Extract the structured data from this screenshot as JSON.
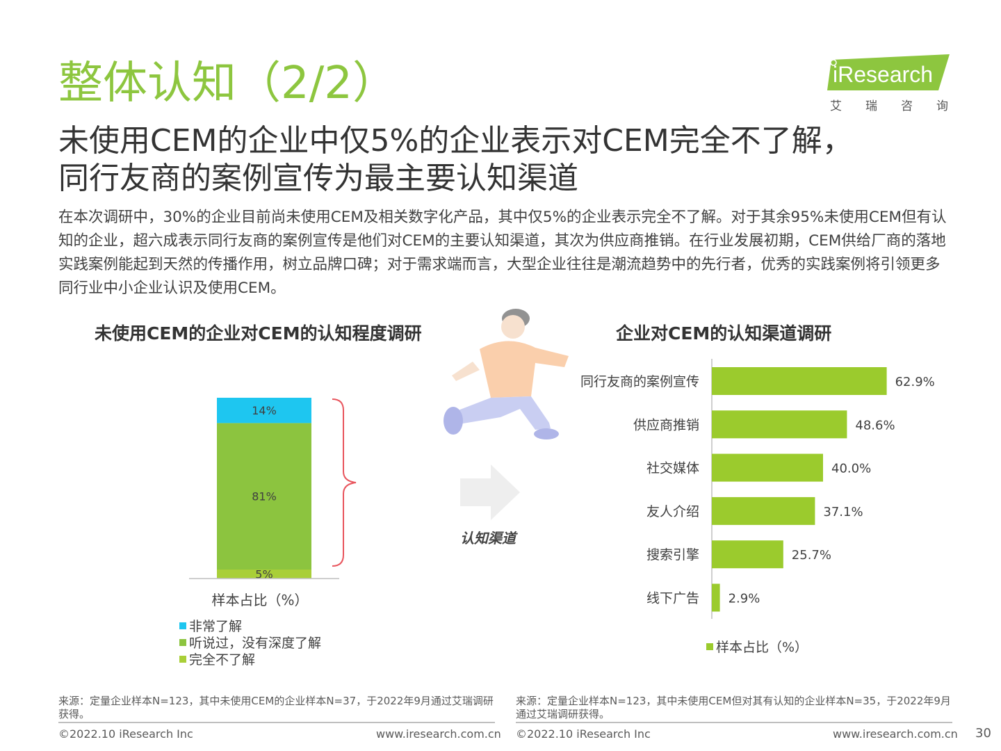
{
  "page": {
    "title": "整体认知（2/2）",
    "headline_lines": [
      "未使用CEM的企业中仅5%的企业表示对CEM完全不了解，",
      "同行友商的案例宣传为最主要认知渠道"
    ],
    "summary": "在本次调研中，30%的企业目前尚未使用CEM及相关数字化产品，其中仅5%的企业表示完全不了解。对于其余95%未使用CEM但有认知的企业，超六成表示同行友商的案例宣传是他们对CEM的主要认知渠道，其次为供应商推销。在行业发展初期，CEM供给厂商的落地实践案例能起到天然的传播作用，树立品牌口碑；对于需求端而言，大型企业往往是潮流趋势中的先行者，优秀的实践案例将引领更多同行业中小企业认识及使用CEM。",
    "page_number": "30"
  },
  "logo": {
    "word": "iResearch",
    "cn": "艾瑞咨询"
  },
  "colors": {
    "accent_green": "#8dc63f",
    "bar_green": "#9bcb2d",
    "cyan": "#1ec6f0",
    "mid_green": "#8cc43f",
    "light_green": "#a9cf38"
  },
  "middle": {
    "channel_label": "认知渠道"
  },
  "chart_data": [
    {
      "type": "bar",
      "stacked": true,
      "title": "未使用CEM的企业对CEM的认知程度调研",
      "categories": [
        "样本占比（%）"
      ],
      "series": [
        {
          "name": "完全不了解",
          "values": [
            5
          ],
          "color": "#a9cf38"
        },
        {
          "name": "听说过，没有深度了解",
          "values": [
            81
          ],
          "color": "#8cc43f"
        },
        {
          "name": "非常了解",
          "values": [
            14
          ],
          "color": "#1ec6f0"
        }
      ],
      "data_labels": [
        "5%",
        "81%",
        "14%"
      ],
      "legend_order": [
        "非常了解",
        "听说过，没有深度了解",
        "完全不了解"
      ],
      "legend": "bottom",
      "ylim": [
        0,
        100
      ]
    },
    {
      "type": "bar",
      "orientation": "horizontal",
      "title": "企业对CEM的认知渠道调研",
      "categories": [
        "同行友商的案例宣传",
        "供应商推销",
        "社交媒体",
        "友人介绍",
        "搜索引擎",
        "线下广告"
      ],
      "values": [
        62.9,
        48.6,
        40.0,
        37.1,
        25.7,
        2.9
      ],
      "data_labels": [
        "62.9%",
        "48.6%",
        "40.0%",
        "37.1%",
        "25.7%",
        "2.9%"
      ],
      "series": [
        {
          "name": "样本占比（%）",
          "color": "#9bcb2d"
        }
      ],
      "legend": "bottom",
      "xlim": [
        0,
        100
      ]
    }
  ],
  "footer": {
    "left_source": "来源：定量企业样本N=123，其中未使用CEM的企业样本N=37，于2022年9月通过艾瑞调研获得。",
    "right_source": "来源：定量企业样本N=123，其中未使用CEM但对其有认知的企业样本N=35，于2022年9月通过艾瑞调研获得。",
    "copyright": "©2022.10 iResearch Inc",
    "website": "www.iresearch.com.cn"
  }
}
